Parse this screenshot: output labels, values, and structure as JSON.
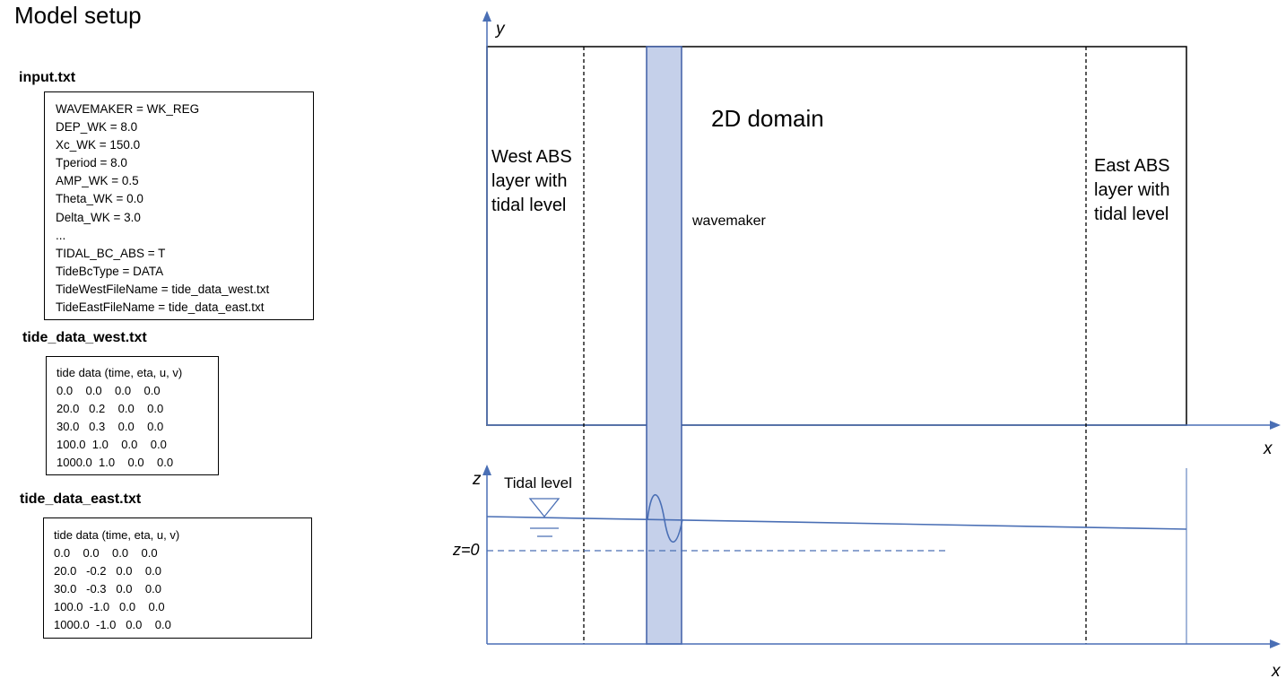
{
  "title": "Model setup",
  "input_file": {
    "label": "input.txt",
    "lines": [
      "WAVEMAKER = WK_REG",
      "DEP_WK = 8.0",
      "Xc_WK = 150.0",
      "Tperiod = 8.0",
      "AMP_WK = 0.5",
      "Theta_WK = 0.0",
      "Delta_WK = 3.0",
      "...",
      "TIDAL_BC_ABS = T",
      "TideBcType = DATA",
      "TideWestFileName = tide_data_west.txt",
      "TideEastFileName = tide_data_east.txt"
    ]
  },
  "west_file": {
    "label": "tide_data_west.txt",
    "lines": [
      "tide data (time, eta, u, v)",
      "0.0    0.0    0.0    0.0",
      "20.0   0.2    0.0    0.0",
      "30.0   0.3    0.0    0.0",
      "100.0  1.0    0.0    0.0",
      "1000.0  1.0    0.0    0.0"
    ]
  },
  "east_file": {
    "label": "tide_data_east.txt",
    "lines": [
      "tide data (time, eta, u, v)",
      "0.0    0.0    0.0    0.0",
      "20.0   -0.2   0.0    0.0",
      "30.0   -0.3   0.0    0.0",
      "100.0  -1.0   0.0    0.0",
      "1000.0  -1.0   0.0    0.0"
    ]
  },
  "diagram": {
    "y_axis_label": "y",
    "x_axis_label_top": "x",
    "z_axis_label": "z",
    "x_axis_label_bottom": "x",
    "domain_label": "2D domain",
    "west_label": [
      "West ABS",
      "layer with",
      "tidal level"
    ],
    "east_label": [
      "East ABS",
      "layer with",
      "tidal level"
    ],
    "wavemaker_label": "wavemaker",
    "tidal_level_label": "Tidal level",
    "z0_label": "z=0"
  },
  "colors": {
    "accent_line": "#4a6fb5",
    "wavemaker_fill": "#c5d0ea",
    "wavemaker_stroke": "#3e5da6"
  }
}
